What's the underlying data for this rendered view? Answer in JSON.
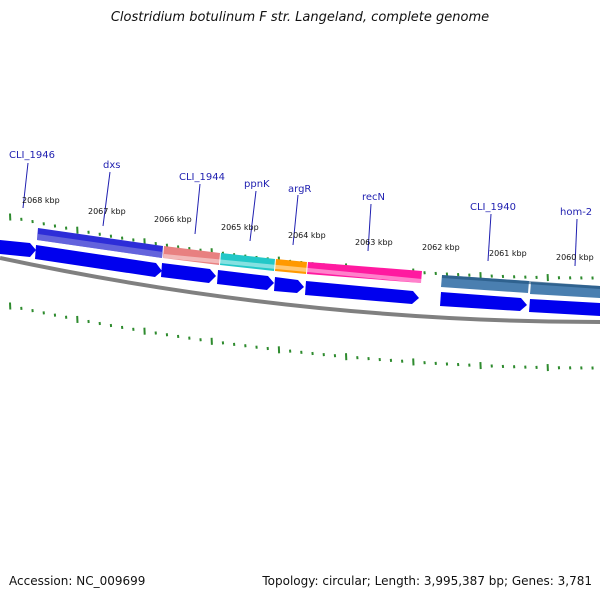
{
  "title": "Clostridium botulinum F str. Langeland, complete genome",
  "footer": {
    "accession": "Accession: NC_009699",
    "summary": "Topology: circular; Length: 3,995,387 bp; Genes: 3,781"
  },
  "colors": {
    "forward_cds": "#0000ee",
    "backbone": "#808080",
    "tick": "#2e8b2e",
    "label": "#1f1fb0"
  },
  "scale_labels": [
    "2068 kbp",
    "2067 kbp",
    "2066 kbp",
    "2065 kbp",
    "2064 kbp",
    "2063 kbp",
    "2062 kbp",
    "2061 kbp",
    "2060 kbp"
  ],
  "gene_labels": [
    "CLI_1946",
    "dxs",
    "CLI_1944",
    "ppnK",
    "argR",
    "recN",
    "CLI_1940",
    "hom-2"
  ],
  "feature_bands": [
    {
      "color": "#2d2dd8"
    },
    {
      "color": "#e88080"
    },
    {
      "color": "#22c8c8"
    },
    {
      "color": "#ff9900"
    },
    {
      "color": "#ff1aa0"
    },
    {
      "color": "#4a7fb0"
    },
    {
      "color": "#4a7fb0"
    }
  ]
}
